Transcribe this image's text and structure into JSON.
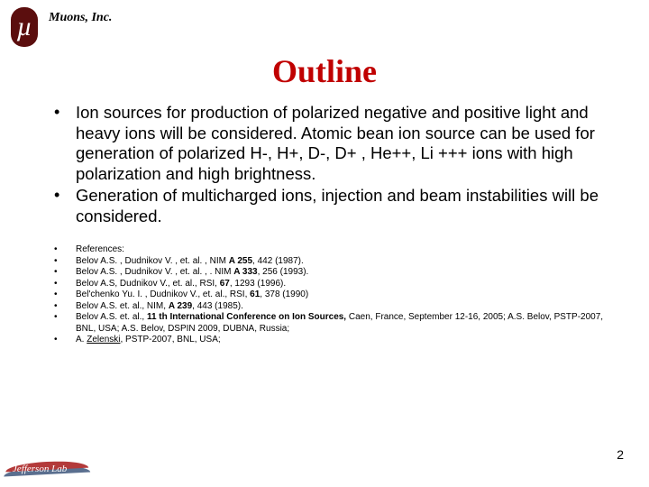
{
  "header": {
    "logo_glyph": "µ",
    "company": "Muons, Inc."
  },
  "title": "Outline",
  "main_bullets": [
    "Ion sources for production of polarized negative and positive light and heavy ions will be considered. Atomic bean ion source can be used for generation of polarized H-, H+, D-, D+ , He++, Li +++ ions with high polarization and high brightness.",
    "Generation of multicharged ions, injection and beam instabilities will be considered."
  ],
  "references": [
    {
      "text": "References:"
    },
    {
      "prefix": " Belov A.S. , Dudnikov V. , et. al. , NIM ",
      "bold1": "A 255",
      "mid": ", 442 (1987)."
    },
    {
      "prefix": " Belov A.S. , Dudnikov V. , et. al. , . NIM ",
      "bold1": "A 333",
      "mid": ", 256 (1993)."
    },
    {
      "prefix": " Belov A.S, Dudnikov V., et. al., RSI, ",
      "bold1": "67",
      "mid": ", 1293 (1996)."
    },
    {
      "prefix": " Bel'chenko Yu. I. , Dudnikov V., et. al., RSI, ",
      "bold1": "61",
      "mid": ", 378 (1990)"
    },
    {
      "prefix": " Belov A.S. et. al., NIM, ",
      "bold1": "A 239",
      "mid": ", 443 (1985)."
    },
    {
      "prefix": " Belov A.S. et. al., ",
      "bold1": "11 th International Conference on Ion Sources,",
      "mid": " Caen, France, September 12-16, 2005;  A.S. Belov, PSTP-2007, BNL, USA; A.S. Belov, DSPIN 2009, DUBNA, Russia;"
    },
    {
      "prefix": " A. ",
      "under": "Zelenski",
      "mid": ", PSTP-2007, BNL, USA;"
    }
  ],
  "page_number": "2",
  "footer_logo_text": "Jefferson Lab",
  "colors": {
    "title": "#c00000",
    "logo_bg": "#5b0e0e",
    "text": "#000000"
  }
}
